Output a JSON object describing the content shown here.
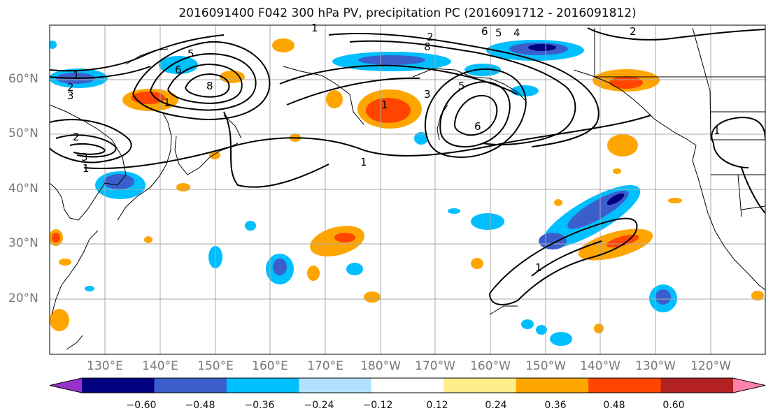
{
  "title": "2016091400 F042 300 hPa PV, precipitation PC (2016091712 - 2016091812)",
  "lat_labels": [
    "60°N",
    "50°N",
    "40°N",
    "30°N",
    "20°N"
  ],
  "lon_labels": [
    "130°E",
    "140°E",
    "150°E",
    "160°E",
    "170°E",
    "180°W",
    "170°W",
    "160°W",
    "150°W",
    "140°W",
    "130°W",
    "120°W"
  ],
  "colorbar": {
    "ticks": [
      "−0.60",
      "−0.48",
      "−0.36",
      "−0.24",
      "−0.12",
      "0.12",
      "0.24",
      "0.36",
      "0.48",
      "0.60"
    ],
    "colors": [
      "#9932CC",
      "#000080",
      "#3A5FCD",
      "#00BFFF",
      "#B0E2FF",
      "#FFFFFF",
      "#FFEC8B",
      "#FFA500",
      "#FF4500",
      "#B22222",
      "#FF82AB"
    ]
  },
  "contour_labels": [
    "1",
    "2",
    "3",
    "1",
    "2",
    "3",
    "1",
    "5",
    "6",
    "8",
    "1",
    "6",
    "5",
    "4",
    "3",
    "2",
    "1",
    "6",
    "8",
    "5",
    "1",
    "2",
    "1",
    "1"
  ]
}
